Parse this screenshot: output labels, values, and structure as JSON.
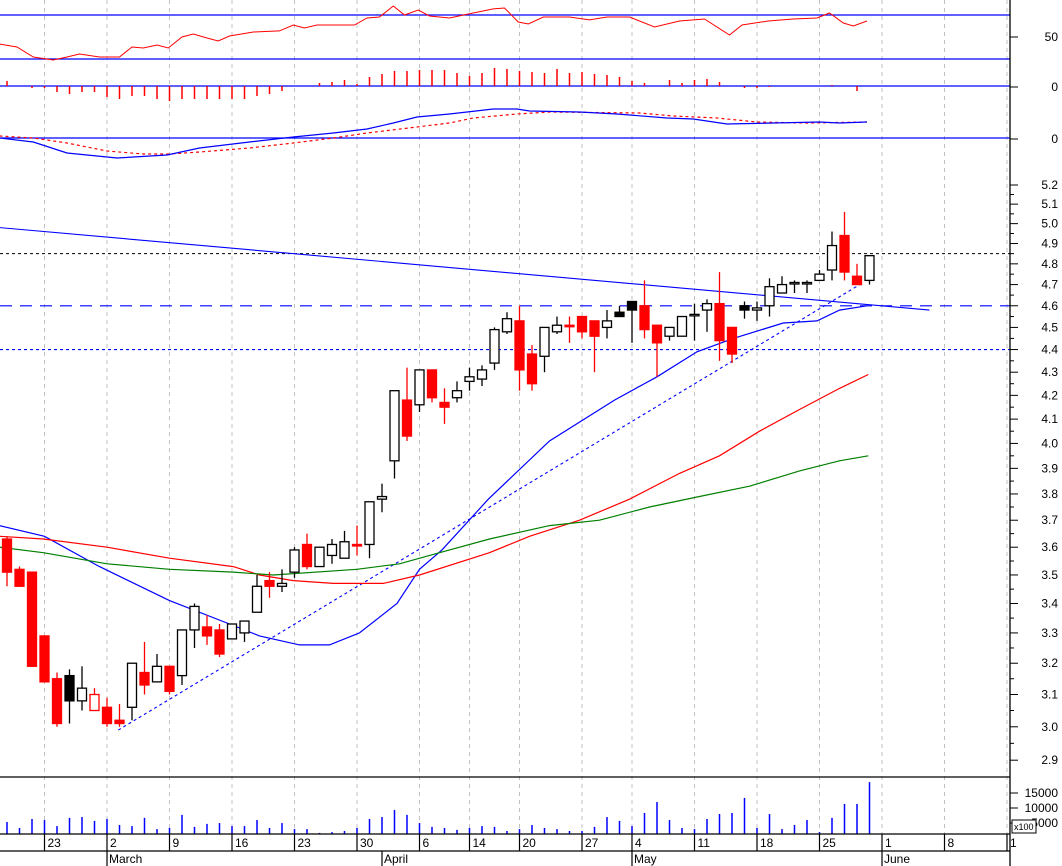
{
  "chart_data": {
    "type": "candlestick",
    "price_scale": "log",
    "ylim": [
      2.9,
      5.2
    ],
    "grid": "vertical dashed weekly",
    "colors": {
      "up": "#ffffff",
      "down": "#ff0000",
      "ma_short": "#0000ff",
      "ma_mid": "#ff0000",
      "ma_long": "#008000",
      "volume": "#0000ff",
      "indicator": "#ff0000",
      "reference": "#0000ff"
    },
    "candles": [
      [
        3.63,
        3.64,
        3.46,
        3.51,
        "r"
      ],
      [
        3.52,
        3.53,
        3.46,
        3.46,
        "r"
      ],
      [
        3.51,
        3.51,
        3.19,
        3.19,
        "r"
      ],
      [
        3.29,
        3.29,
        3.14,
        3.14,
        "r"
      ],
      [
        3.15,
        3.17,
        3.0,
        3.01,
        "r"
      ],
      [
        3.16,
        3.18,
        3.01,
        3.08,
        "b"
      ],
      [
        3.08,
        3.19,
        3.05,
        3.12,
        "w"
      ],
      [
        3.05,
        3.12,
        3.05,
        3.1,
        "hr"
      ],
      [
        3.06,
        3.09,
        3.0,
        3.01,
        "r"
      ],
      [
        3.02,
        3.07,
        3.0,
        3.01,
        "r"
      ],
      [
        3.06,
        3.2,
        3.02,
        3.2,
        "w"
      ],
      [
        3.17,
        3.27,
        3.1,
        3.13,
        "r"
      ],
      [
        3.14,
        3.23,
        3.14,
        3.19,
        "w"
      ],
      [
        3.19,
        3.19,
        3.1,
        3.11,
        "r"
      ],
      [
        3.16,
        3.31,
        3.13,
        3.31,
        "w"
      ],
      [
        3.31,
        3.4,
        3.25,
        3.39,
        "w"
      ],
      [
        3.32,
        3.36,
        3.26,
        3.29,
        "r"
      ],
      [
        3.31,
        3.33,
        3.22,
        3.23,
        "r"
      ],
      [
        3.28,
        3.33,
        3.28,
        3.33,
        "w"
      ],
      [
        3.3,
        3.34,
        3.27,
        3.34,
        "w"
      ],
      [
        3.37,
        3.5,
        3.37,
        3.46,
        "w"
      ],
      [
        3.48,
        3.51,
        3.42,
        3.46,
        "r"
      ],
      [
        3.46,
        3.52,
        3.44,
        3.47,
        "w"
      ],
      [
        3.51,
        3.6,
        3.49,
        3.59,
        "w"
      ],
      [
        3.61,
        3.65,
        3.52,
        3.53,
        "r"
      ],
      [
        3.53,
        3.6,
        3.53,
        3.6,
        "w"
      ],
      [
        3.57,
        3.63,
        3.54,
        3.61,
        "w"
      ],
      [
        3.56,
        3.66,
        3.56,
        3.62,
        "w"
      ],
      [
        3.61,
        3.68,
        3.57,
        3.61,
        "r"
      ],
      [
        3.61,
        3.77,
        3.56,
        3.77,
        "w"
      ],
      [
        3.78,
        3.84,
        3.73,
        3.79,
        "w"
      ],
      [
        3.93,
        4.22,
        3.86,
        4.22,
        "w"
      ],
      [
        4.18,
        4.32,
        4.01,
        4.03,
        "r"
      ],
      [
        4.16,
        4.31,
        4.13,
        4.31,
        "w"
      ],
      [
        4.31,
        4.31,
        4.17,
        4.19,
        "r"
      ],
      [
        4.17,
        4.23,
        4.08,
        4.15,
        "r"
      ],
      [
        4.19,
        4.26,
        4.17,
        4.22,
        "w"
      ],
      [
        4.26,
        4.32,
        4.22,
        4.28,
        "w"
      ],
      [
        4.27,
        4.33,
        4.24,
        4.31,
        "w"
      ],
      [
        4.34,
        4.5,
        4.31,
        4.49,
        "w"
      ],
      [
        4.48,
        4.57,
        4.47,
        4.54,
        "w"
      ],
      [
        4.53,
        4.6,
        4.22,
        4.31,
        "r"
      ],
      [
        4.38,
        4.42,
        4.22,
        4.25,
        "r"
      ],
      [
        4.37,
        4.5,
        4.3,
        4.5,
        "w"
      ],
      [
        4.48,
        4.55,
        4.47,
        4.51,
        "w"
      ],
      [
        4.51,
        4.55,
        4.43,
        4.51,
        "r"
      ],
      [
        4.55,
        4.55,
        4.45,
        4.48,
        "r"
      ],
      [
        4.53,
        4.53,
        4.3,
        4.46,
        "r"
      ],
      [
        4.5,
        4.58,
        4.45,
        4.53,
        "w"
      ],
      [
        4.57,
        4.6,
        4.55,
        4.55,
        "b"
      ],
      [
        4.62,
        4.62,
        4.43,
        4.58,
        "b"
      ],
      [
        4.6,
        4.72,
        4.45,
        4.49,
        "r"
      ],
      [
        4.51,
        4.51,
        4.28,
        4.43,
        "r"
      ],
      [
        4.46,
        4.5,
        4.44,
        4.5,
        "w"
      ],
      [
        4.46,
        4.55,
        4.46,
        4.55,
        "w"
      ],
      [
        4.56,
        4.61,
        4.44,
        4.56,
        "w"
      ],
      [
        4.58,
        4.63,
        4.48,
        4.61,
        "w"
      ],
      [
        4.61,
        4.76,
        4.35,
        4.44,
        "r"
      ],
      [
        4.5,
        4.5,
        4.34,
        4.38,
        "r"
      ],
      [
        4.6,
        4.62,
        4.54,
        4.58,
        "b"
      ],
      [
        4.58,
        4.62,
        4.53,
        4.59,
        "w"
      ],
      [
        4.6,
        4.73,
        4.55,
        4.69,
        "w"
      ],
      [
        4.66,
        4.74,
        4.66,
        4.7,
        "w"
      ],
      [
        4.71,
        4.72,
        4.66,
        4.71,
        "w"
      ],
      [
        4.71,
        4.72,
        4.66,
        4.71,
        "w"
      ],
      [
        4.72,
        4.77,
        4.72,
        4.75,
        "w"
      ],
      [
        4.77,
        4.96,
        4.72,
        4.89,
        "w"
      ],
      [
        4.94,
        5.06,
        4.72,
        4.76,
        "r"
      ],
      [
        4.74,
        4.8,
        4.7,
        4.7,
        "r"
      ],
      [
        4.72,
        4.84,
        4.7,
        4.84,
        "w"
      ]
    ],
    "moving_averages": [
      {
        "color": "#0000ff",
        "points": [
          [
            -0.6,
            3.68
          ],
          [
            3.0,
            3.64
          ],
          [
            7.4,
            3.53
          ],
          [
            13.0,
            3.41
          ],
          [
            17.8,
            3.33
          ],
          [
            20.2,
            3.29
          ],
          [
            23.4,
            3.26
          ],
          [
            25.8,
            3.26
          ],
          [
            28.2,
            3.3
          ],
          [
            31.2,
            3.4
          ],
          [
            33.0,
            3.52
          ],
          [
            34.8,
            3.59
          ],
          [
            38.5,
            3.78
          ],
          [
            43.4,
            4.01
          ],
          [
            48.6,
            4.18
          ],
          [
            52.0,
            4.28
          ],
          [
            55.2,
            4.39
          ],
          [
            58.1,
            4.45
          ],
          [
            62.1,
            4.52
          ],
          [
            64.8,
            4.53
          ],
          [
            66.6,
            4.58
          ],
          [
            68.8,
            4.6
          ]
        ]
      },
      {
        "color": "#ff0000",
        "points": [
          [
            -0.6,
            3.64
          ],
          [
            2.9,
            3.63
          ],
          [
            8.0,
            3.6
          ],
          [
            13.0,
            3.56
          ],
          [
            18.1,
            3.53
          ],
          [
            20.2,
            3.5
          ],
          [
            22.9,
            3.48
          ],
          [
            26.1,
            3.47
          ],
          [
            30.1,
            3.47
          ],
          [
            33.0,
            3.5
          ],
          [
            38.6,
            3.58
          ],
          [
            41.8,
            3.64
          ],
          [
            45.8,
            3.7
          ],
          [
            49.8,
            3.78
          ],
          [
            53.8,
            3.88
          ],
          [
            57.0,
            3.95
          ],
          [
            60.2,
            4.05
          ],
          [
            63.4,
            4.14
          ],
          [
            66.6,
            4.23
          ],
          [
            68.9,
            4.29
          ]
        ]
      },
      {
        "color": "#008000",
        "points": [
          [
            -0.6,
            3.6
          ],
          [
            2.9,
            3.58
          ],
          [
            8.0,
            3.54
          ],
          [
            13.0,
            3.52
          ],
          [
            18.1,
            3.51
          ],
          [
            21.3,
            3.5
          ],
          [
            28.0,
            3.52
          ],
          [
            31.4,
            3.54
          ],
          [
            34.6,
            3.58
          ],
          [
            38.6,
            3.63
          ],
          [
            43.4,
            3.68
          ],
          [
            47.4,
            3.7
          ],
          [
            51.4,
            3.75
          ],
          [
            55.4,
            3.79
          ],
          [
            59.4,
            3.83
          ],
          [
            63.4,
            3.89
          ],
          [
            66.6,
            3.93
          ],
          [
            68.9,
            3.95
          ]
        ]
      }
    ],
    "horizontal_lines": [
      {
        "price": 4.85,
        "color": "#000000",
        "style": "dotted"
      },
      {
        "price": 4.6,
        "color": "#0000ff",
        "style": "long-dash"
      },
      {
        "price": 4.4,
        "color": "#0000ff",
        "style": "dotted"
      }
    ],
    "trendlines": [
      {
        "from": [
          -0.6,
          4.98
        ],
        "to": [
          73.8,
          4.58
        ],
        "color": "#0000ff",
        "style": "solid"
      },
      {
        "from": [
          8.9,
          2.99
        ],
        "to": [
          68.5,
          4.71
        ],
        "color": "#0000ff",
        "style": "dotted"
      }
    ],
    "volume": [
      4400,
      2200,
      5500,
      5100,
      2900,
      5900,
      6200,
      4800,
      5500,
      3300,
      2900,
      5900,
      1800,
      2200,
      7000,
      2600,
      3700,
      4000,
      2900,
      2900,
      5100,
      2200,
      4000,
      1800,
      1800,
      400,
      700,
      1100,
      2200,
      5500,
      6200,
      8800,
      7000,
      4000,
      2600,
      2200,
      1500,
      2200,
      2900,
      2600,
      1100,
      1800,
      3300,
      2200,
      1800,
      1100,
      1100,
      2600,
      6200,
      4800,
      2900,
      7700,
      11700,
      5100,
      2200,
      1800,
      5500,
      7300,
      7700,
      13200,
      2200,
      7300,
      1800,
      3300,
      5100,
      700,
      5900,
      11000,
      11000,
      19000
    ],
    "oscillator": {
      "reference_levels": [
        30,
        70
      ],
      "points": [
        [
          -0.6,
          43.6
        ],
        [
          0.8,
          40.9
        ],
        [
          2.1,
          31.8
        ],
        [
          3.7,
          29.1
        ],
        [
          4.8,
          31.8
        ],
        [
          5.8,
          34.5
        ],
        [
          7.4,
          31.8
        ],
        [
          9.0,
          31.8
        ],
        [
          10.0,
          40.9
        ],
        [
          10.9,
          40
        ],
        [
          12.0,
          42.7
        ],
        [
          12.9,
          40
        ],
        [
          14.0,
          50
        ],
        [
          14.9,
          52.7
        ],
        [
          16.0,
          49.1
        ],
        [
          16.9,
          46.4
        ],
        [
          17.8,
          50.9
        ],
        [
          19.7,
          54.5
        ],
        [
          21.8,
          55.5
        ],
        [
          22.9,
          60.9
        ],
        [
          23.8,
          58.2
        ],
        [
          24.8,
          60.9
        ],
        [
          27.8,
          60.9
        ],
        [
          28.8,
          67.3
        ],
        [
          29.8,
          68.2
        ],
        [
          30.9,
          78.2
        ],
        [
          31.8,
          70
        ],
        [
          32.9,
          74.5
        ],
        [
          33.8,
          69.1
        ],
        [
          35.4,
          67.3
        ],
        [
          36.9,
          70.9
        ],
        [
          38.9,
          75.5
        ],
        [
          39.8,
          76.4
        ],
        [
          40.9,
          63.6
        ],
        [
          41.7,
          61.8
        ],
        [
          42.9,
          68.2
        ],
        [
          45.0,
          68.2
        ],
        [
          46.6,
          65.5
        ],
        [
          48.0,
          68.2
        ],
        [
          49.8,
          68.2
        ],
        [
          51.8,
          59.1
        ],
        [
          53.8,
          64.5
        ],
        [
          55.8,
          66.4
        ],
        [
          57.8,
          51.8
        ],
        [
          58.8,
          60.9
        ],
        [
          60.9,
          64.5
        ],
        [
          62.9,
          66.4
        ],
        [
          64.8,
          67.3
        ],
        [
          65.8,
          71.8
        ],
        [
          66.9,
          62.7
        ],
        [
          67.7,
          60
        ],
        [
          68.8,
          64.5
        ]
      ]
    },
    "histogram": [
      5,
      0,
      -2,
      -2,
      -6,
      -8,
      -6,
      -6,
      -11,
      -13,
      -10,
      -10,
      -13,
      -15,
      -13,
      -13,
      -13,
      -13,
      -13,
      -13,
      -10,
      -8,
      -5,
      0,
      0,
      3,
      4,
      6,
      2,
      9,
      12,
      15,
      15,
      16,
      16,
      16,
      13,
      10,
      13,
      18,
      17,
      15,
      14,
      13,
      17,
      13,
      14,
      12,
      11,
      9,
      5,
      3,
      0,
      6,
      3,
      6,
      7,
      4,
      0,
      -2,
      -2,
      -1,
      0,
      0,
      0,
      0,
      1,
      0,
      -5,
      0
    ],
    "macd": {
      "line": [
        [
          -0.6,
          0
        ],
        [
          2.1,
          -4
        ],
        [
          4.8,
          -15
        ],
        [
          8.8,
          -20
        ],
        [
          12.8,
          -17
        ],
        [
          15.4,
          -10
        ],
        [
          19.4,
          -4
        ],
        [
          22.9,
          1
        ],
        [
          26.1,
          5
        ],
        [
          28.8,
          9
        ],
        [
          30.9,
          15
        ],
        [
          32.8,
          21
        ],
        [
          35.4,
          24
        ],
        [
          38.9,
          29
        ],
        [
          40.8,
          29
        ],
        [
          41.8,
          27
        ],
        [
          45.8,
          26
        ],
        [
          48.8,
          24
        ],
        [
          52.8,
          20
        ],
        [
          54.9,
          19
        ],
        [
          57.6,
          14
        ],
        [
          61.3,
          15
        ],
        [
          65.0,
          16
        ],
        [
          66.6,
          15
        ],
        [
          68.8,
          16
        ]
      ],
      "signal": [
        [
          -0.6,
          2
        ],
        [
          2.1,
          0
        ],
        [
          4.8,
          -5
        ],
        [
          8.0,
          -13
        ],
        [
          10.9,
          -16
        ],
        [
          13.0,
          -16
        ],
        [
          15.4,
          -14
        ],
        [
          19.4,
          -10
        ],
        [
          22.9,
          -5
        ],
        [
          26.1,
          0
        ],
        [
          28.8,
          5
        ],
        [
          32.8,
          11
        ],
        [
          35.4,
          15
        ],
        [
          37.3,
          20
        ],
        [
          40.8,
          24
        ],
        [
          43.4,
          26
        ],
        [
          50.6,
          25
        ],
        [
          53.3,
          22
        ],
        [
          56.8,
          20
        ],
        [
          60.0,
          16
        ],
        [
          64.0,
          15
        ],
        [
          68.8,
          16
        ]
      ]
    },
    "price_axis": {
      "ticks": [
        "5.2",
        "5.1",
        "5.0",
        "4.9",
        "4.8",
        "4.7",
        "4.6",
        "4.5",
        "4.4",
        "4.3",
        "4.2",
        "4.1",
        "4.0",
        "3.9",
        "3.8",
        "3.7",
        "3.6",
        "3.5",
        "3.4",
        "3.3",
        "3.2",
        "3.1",
        "3.0",
        "2.9"
      ]
    },
    "oscillator_axis": {
      "label": "50"
    },
    "histogram_axis": {
      "label": "0"
    },
    "macd_axis": {
      "label": "0"
    },
    "volume_axis": {
      "ticks": [
        "15000",
        "10000",
        "5000"
      ],
      "multiplier": "x100"
    },
    "date_axis": {
      "week_ticks": [
        {
          "label": "23",
          "index": 3
        },
        {
          "label": "2",
          "index": 8
        },
        {
          "label": "9",
          "index": 13
        },
        {
          "label": "16",
          "index": 18
        },
        {
          "label": "23",
          "index": 23
        },
        {
          "label": "30",
          "index": 28
        },
        {
          "label": "6",
          "index": 33
        },
        {
          "label": "14",
          "index": 37
        },
        {
          "label": "20",
          "index": 41
        },
        {
          "label": "27",
          "index": 46
        },
        {
          "label": "4",
          "index": 50
        },
        {
          "label": "11",
          "index": 55
        },
        {
          "label": "18",
          "index": 60
        },
        {
          "label": "25",
          "index": 65
        },
        {
          "label": "1",
          "index": 70
        },
        {
          "label": "8",
          "index": 75
        },
        {
          "label": "1",
          "index": 80
        }
      ],
      "months": [
        {
          "label": "March",
          "index": 8
        },
        {
          "label": "April",
          "index": 30
        },
        {
          "label": "May",
          "index": 50
        },
        {
          "label": "June",
          "index": 70
        }
      ]
    }
  }
}
